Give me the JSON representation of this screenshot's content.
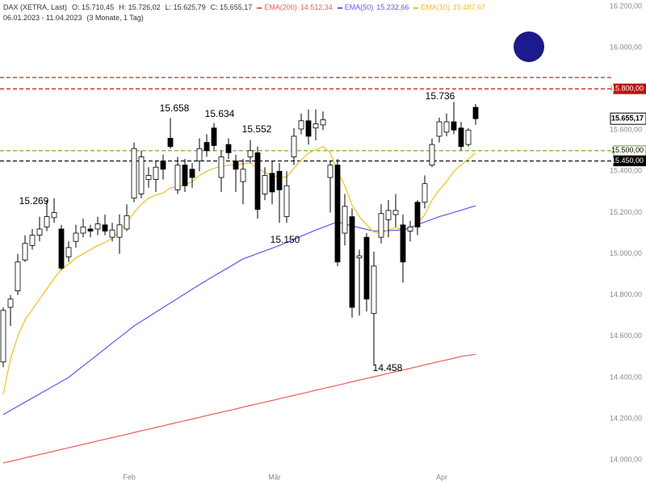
{
  "header": {
    "instrument": "DAX (XETRA, Last)",
    "open": "O: 15.710,45",
    "high": "H: 15.726,02",
    "low": "L: 15.625,79",
    "close": "C: 15.655,17",
    "range": "06.01.2023 - 11.04.2023",
    "span": "(3 Monate, 1 Tag)"
  },
  "chart_data": {
    "type": "candlestick",
    "categories": [
      null,
      null,
      null,
      null,
      null,
      null,
      null,
      null,
      null,
      null,
      null,
      null,
      null,
      null,
      null,
      null,
      null,
      null,
      "Feb",
      null,
      null,
      null,
      null,
      null,
      null,
      null,
      null,
      null,
      null,
      null,
      null,
      null,
      null,
      null,
      null,
      null,
      null,
      null,
      "Mär",
      null,
      null,
      null,
      null,
      null,
      null,
      null,
      null,
      null,
      null,
      null,
      null,
      null,
      null,
      null,
      null,
      null,
      null,
      null,
      null,
      null,
      null,
      "Apr",
      null,
      null,
      null,
      null
    ],
    "open": [
      14475,
      14740,
      14820,
      14970,
      15040,
      15090,
      15130,
      15175,
      15120,
      14985,
      15060,
      15100,
      15120,
      15120,
      15140,
      15080,
      15080,
      15120,
      15270,
      15290,
      15360,
      15360,
      15450,
      15560,
      15310,
      15430,
      15410,
      15450,
      15540,
      15610,
      15370,
      15530,
      15450,
      15350,
      15470,
      15490,
      15290,
      15390,
      15400,
      15180,
      15470,
      15605,
      15645,
      15610,
      15625,
      15370,
      15430,
      15100,
      15180,
      14980,
      15080,
      14710,
      15080,
      15165,
      15190,
      15140,
      15110,
      15250,
      15250,
      15430,
      15570,
      15590,
      15640,
      15610,
      15530,
      15710.45
    ],
    "high": [
      14740,
      14800,
      15000,
      15090,
      15120,
      15180,
      15260,
      15269,
      15140,
      15060,
      15140,
      15170,
      15140,
      15180,
      15190,
      15150,
      15190,
      15240,
      15540,
      15500,
      15420,
      15450,
      15480,
      15658,
      15470,
      15460,
      15440,
      15560,
      15580,
      15634,
      15500,
      15560,
      15480,
      15460,
      15552,
      15520,
      15420,
      15450,
      15440,
      15400,
      15610,
      15680,
      15700,
      15700,
      15690,
      15450,
      15460,
      15290,
      15220,
      15020,
      15100,
      15010,
      15240,
      15260,
      15290,
      15190,
      15160,
      15260,
      15380,
      15560,
      15660,
      15680,
      15736,
      15640,
      15610,
      15726.02
    ],
    "low": [
      14450,
      14650,
      14800,
      14960,
      15020,
      15060,
      15110,
      15150,
      14920,
      14960,
      15030,
      15080,
      15080,
      15090,
      15090,
      15060,
      15000,
      15110,
      15250,
      15270,
      15320,
      15300,
      15360,
      15510,
      15290,
      15300,
      15320,
      15400,
      15470,
      15500,
      15300,
      15460,
      15300,
      15240,
      15440,
      15170,
      15260,
      15240,
      15150,
      15150,
      15430,
      15580,
      15530,
      15550,
      15600,
      15200,
      14940,
      15040,
      14690,
      14700,
      14720,
      14458,
      15050,
      15080,
      15130,
      14860,
      15060,
      15090,
      15220,
      15420,
      15540,
      15570,
      15580,
      15500,
      15520,
      15625.79
    ],
    "close": [
      14725,
      14780,
      14960,
      15050,
      15090,
      15120,
      15180,
      15200,
      14930,
      15030,
      15100,
      15130,
      15110,
      15145,
      15110,
      15115,
      15140,
      15185,
      15510,
      15470,
      15380,
      15420,
      15410,
      15520,
      15430,
      15330,
      15370,
      15510,
      15500,
      15525,
      15470,
      15490,
      15410,
      15410,
      15500,
      15215,
      15380,
      15300,
      15310,
      15330,
      15570,
      15645,
      15570,
      15630,
      15650,
      15430,
      14960,
      15230,
      14740,
      14990,
      14780,
      14940,
      15195,
      15210,
      15210,
      14960,
      15130,
      15130,
      15340,
      15530,
      15640,
      15640,
      15600,
      15520,
      15600,
      15655.17
    ],
    "series": [
      {
        "name": "EMA(200)",
        "legend_value": "14.512,34",
        "color": "#f05a5a",
        "values": [
          13985,
          13993,
          14001,
          14010,
          14018,
          14026,
          14034,
          14042,
          14051,
          14059,
          14067,
          14075,
          14083,
          14092,
          14100,
          14108,
          14116,
          14124,
          14133,
          14141,
          14149,
          14157,
          14165,
          14174,
          14182,
          14190,
          14198,
          14206,
          14215,
          14223,
          14231,
          14239,
          14247,
          14256,
          14264,
          14272,
          14280,
          14288,
          14297,
          14305,
          14313,
          14321,
          14329,
          14338,
          14346,
          14354,
          14362,
          14370,
          14379,
          14387,
          14395,
          14403,
          14411,
          14420,
          14428,
          14436,
          14444,
          14452,
          14461,
          14469,
          14477,
          14485,
          14493,
          14502,
          14507,
          14512.34
        ]
      },
      {
        "name": "EMA(50)",
        "legend_value": "15.232,66",
        "color": "#5a5af0",
        "values": [
          14220,
          14240,
          14260,
          14280,
          14300,
          14320,
          14340,
          14360,
          14380,
          14400,
          14428,
          14456,
          14483,
          14511,
          14539,
          14567,
          14594,
          14622,
          14650,
          14672,
          14694,
          14717,
          14739,
          14761,
          14783,
          14806,
          14828,
          14850,
          14871,
          14892,
          14913,
          14933,
          14954,
          14975,
          14988,
          15001,
          15014,
          15027,
          15040,
          15055,
          15070,
          15085,
          15100,
          15115,
          15128,
          15142,
          15155,
          15145,
          15135,
          15127,
          15118,
          15110,
          15111,
          15112,
          15114,
          15115,
          15128,
          15141,
          15154,
          15167,
          15180,
          15190,
          15201,
          15211,
          15222,
          15232.66
        ]
      },
      {
        "name": "EMA(10)",
        "legend_value": "15.487,67",
        "color": "#f0c020",
        "values": [
          14320,
          14490,
          14600,
          14680,
          14730,
          14780,
          14830,
          14880,
          14925,
          14950,
          14980,
          15000,
          15020,
          15040,
          15055,
          15075,
          15110,
          15150,
          15200,
          15240,
          15270,
          15285,
          15295,
          15320,
          15325,
          15335,
          15350,
          15380,
          15400,
          15415,
          15425,
          15430,
          15432,
          15436,
          15440,
          15412,
          15395,
          15380,
          15370,
          15372,
          15415,
          15455,
          15488,
          15505,
          15520,
          15490,
          15400,
          15330,
          15235,
          15180,
          15140,
          15105,
          15100,
          15115,
          15128,
          15115,
          15120,
          15145,
          15190,
          15260,
          15310,
          15350,
          15400,
          15430,
          15460,
          15487.67
        ]
      }
    ],
    "levels": [
      {
        "value": 15855,
        "color": "#b01818"
      },
      {
        "value": 15800,
        "label": "15.800,00",
        "color": "#c01010"
      },
      {
        "value": 15500,
        "label": "15.500,00",
        "color": "#5aaa18"
      },
      {
        "value": 15450,
        "label": "15.450,00",
        "color": "#000000"
      }
    ],
    "last": {
      "value": 15655.17,
      "label": "15.655,17"
    },
    "annotations": [
      "15.269",
      "15.658",
      "15.634",
      "15.552",
      "15.150",
      "14.458",
      "15.736"
    ],
    "ylim": [
      13883,
      16231
    ],
    "yticks": [
      {
        "value": 14000,
        "label": "14.000,00"
      },
      {
        "value": 14200,
        "label": "14.200,00"
      },
      {
        "value": 14400,
        "label": "14.400,00"
      },
      {
        "value": 14600,
        "label": "14.600,00"
      },
      {
        "value": 14800,
        "label": "14.800,00"
      },
      {
        "value": 15000,
        "label": "15.000,00"
      },
      {
        "value": 15200,
        "label": "15.200,00"
      },
      {
        "value": 15400,
        "label": "15.400,00"
      },
      {
        "value": 15600,
        "label": "15.600,00"
      },
      {
        "value": 15800,
        "label": "15.800,00"
      },
      {
        "value": 16000,
        "label": "16.000,00"
      },
      {
        "value": 16200,
        "label": "16.200,00"
      }
    ],
    "up_color": "#ffffff",
    "down_color": "#000000"
  }
}
